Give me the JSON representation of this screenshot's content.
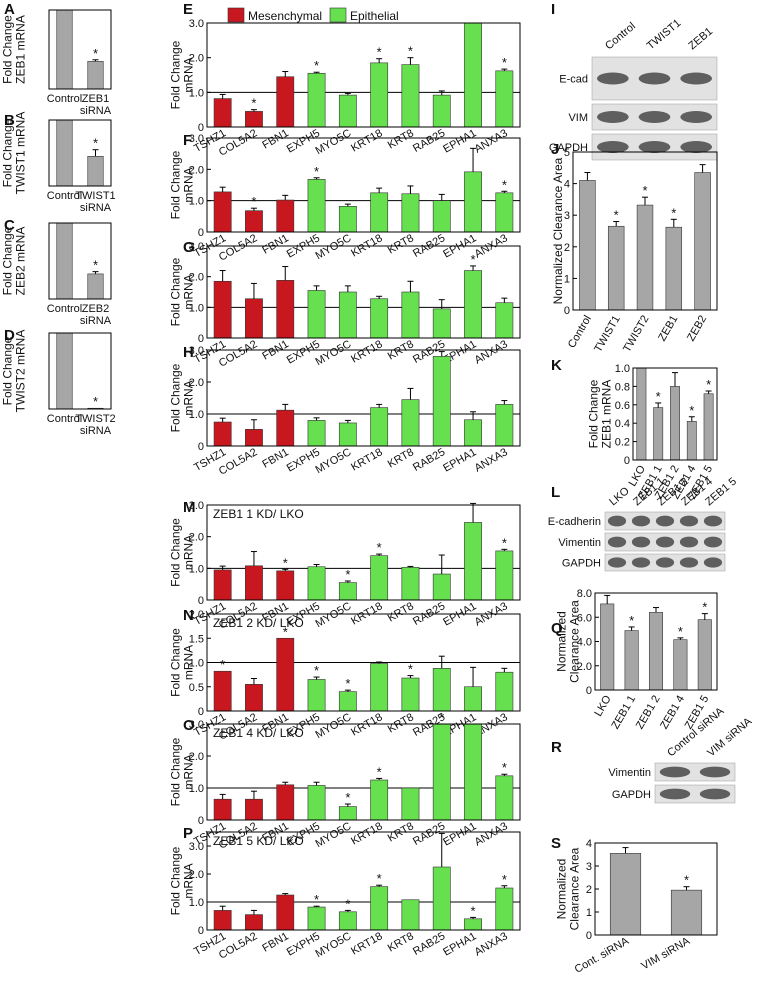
{
  "chart_data": [
    {
      "type": "bar",
      "panel": "A",
      "ylabel": "Fold Change\nZEB1 mRNA",
      "categories": [
        "Control",
        "ZEB1\nsiRNA"
      ],
      "series": [
        {
          "color": "#a6a6a6",
          "values": [
            1,
            0.35
          ],
          "errors": [
            null,
            0.02
          ]
        }
      ],
      "significance": [
        null,
        "*"
      ],
      "ylim": [
        0,
        1
      ]
    },
    {
      "type": "bar",
      "panel": "B",
      "ylabel": "Fold Change\nTWIST1 mRNA",
      "categories": [
        "Control",
        "TWIST1\nsiRNA"
      ],
      "series": [
        {
          "color": "#a6a6a6",
          "values": [
            1,
            0.45
          ],
          "errors": [
            null,
            0.1
          ]
        }
      ],
      "significance": [
        null,
        "*"
      ],
      "ylim": [
        0,
        1
      ]
    },
    {
      "type": "bar",
      "panel": "C",
      "ylabel": "Fold Change\nZEB2 mRNA",
      "categories": [
        "Control",
        "ZEB2\nsiRNA"
      ],
      "series": [
        {
          "color": "#a6a6a6",
          "values": [
            1,
            0.33
          ],
          "errors": [
            null,
            0.03
          ]
        }
      ],
      "significance": [
        null,
        "*"
      ],
      "ylim": [
        0,
        1
      ]
    },
    {
      "type": "bar",
      "panel": "D",
      "ylabel": "Fold Change\nTWIST2 mRNA",
      "categories": [
        "Control",
        "TWIST2\nsiRNA"
      ],
      "series": [
        {
          "color": "#a6a6a6",
          "values": [
            1,
            0.01
          ],
          "errors": [
            null,
            null
          ]
        }
      ],
      "significance": [
        null,
        "*"
      ],
      "ylim": [
        0,
        1
      ]
    },
    {
      "type": "bar",
      "panel": "E",
      "ylabel": "Fold Change\nmRNA",
      "categories": [
        "TSHZ1",
        "COL5A2",
        "FBN1",
        "EXPH5",
        "MYO5C",
        "KRT18",
        "KRT8",
        "RAB25",
        "EPHA1",
        "ANXA3"
      ],
      "series": [
        {
          "name": "Mesenchymal",
          "color": "#c8171e",
          "values": [
            0.82,
            0.45,
            1.45,
            null,
            null,
            null,
            null,
            null,
            null,
            null
          ],
          "errors": [
            0.12,
            0.05,
            0.15,
            null,
            null,
            null,
            null,
            null,
            null,
            null
          ]
        },
        {
          "name": "Epithelial",
          "color": "#66e04e",
          "values": [
            null,
            null,
            null,
            1.55,
            0.92,
            1.85,
            1.8,
            0.92,
            3.0,
            1.62
          ],
          "errors": [
            null,
            null,
            null,
            0.03,
            0.05,
            0.12,
            0.2,
            0.12,
            null,
            0.05
          ]
        }
      ],
      "significance": [
        null,
        "*",
        null,
        "*",
        null,
        "*",
        "*",
        null,
        null,
        "*"
      ],
      "reference_line": 1,
      "ylim": [
        0,
        3
      ],
      "yticks": [
        0,
        {
          "value": 1,
          "label": "1.0"
        },
        {
          "value": 2,
          "label": "2.0"
        },
        {
          "value": 3,
          "label": "3.0"
        }
      ]
    },
    {
      "type": "bar",
      "panel": "F",
      "ylabel": "Fold Change\nmRNA",
      "categories": [
        "TSHZ1",
        "COL5A2",
        "FBN1",
        "EXPH5",
        "MYO5C",
        "KRT18",
        "KRT8",
        "RAB25",
        "EPHA1",
        "ANXA3"
      ],
      "series": [
        {
          "color": "#c8171e",
          "values": [
            1.28,
            0.68,
            1.02,
            null,
            null,
            null,
            null,
            null,
            null,
            null
          ],
          "errors": [
            0.15,
            0.08,
            0.15,
            null,
            null,
            null,
            null,
            null,
            null,
            null
          ]
        },
        {
          "color": "#66e04e",
          "values": [
            null,
            null,
            null,
            1.68,
            0.82,
            1.25,
            1.22,
            1.0,
            1.92,
            1.25
          ],
          "errors": [
            null,
            null,
            null,
            0.05,
            0.07,
            0.15,
            0.25,
            0.2,
            0.75,
            0.05
          ]
        }
      ],
      "significance": [
        null,
        "*",
        null,
        "*",
        null,
        null,
        null,
        null,
        null,
        "*"
      ],
      "reference_line": 1,
      "ylim": [
        0,
        3
      ],
      "yticks": [
        0,
        {
          "value": 1,
          "label": "1.0"
        },
        {
          "value": 2,
          "label": "2.0"
        },
        {
          "value": 3,
          "label": "3.0"
        }
      ]
    },
    {
      "type": "bar",
      "panel": "G",
      "ylabel": "Fold Change\nmRNA",
      "categories": [
        "TSHZ1",
        "COL5A2",
        "FBN1",
        "EXPH5",
        "MYO5C",
        "KRT18",
        "KRT8",
        "RAB25",
        "EPHA1",
        "ANXA3"
      ],
      "series": [
        {
          "color": "#c8171e",
          "values": [
            1.85,
            1.28,
            1.88,
            null,
            null,
            null,
            null,
            null,
            null,
            null
          ],
          "errors": [
            0.35,
            0.5,
            0.45,
            null,
            null,
            null,
            null,
            null,
            null,
            null
          ]
        },
        {
          "color": "#66e04e",
          "values": [
            null,
            null,
            null,
            1.55,
            1.5,
            1.28,
            1.5,
            0.95,
            2.2,
            1.15
          ],
          "errors": [
            null,
            null,
            null,
            0.15,
            0.2,
            0.08,
            0.35,
            0.3,
            0.15,
            0.15
          ]
        }
      ],
      "significance": [
        null,
        null,
        null,
        null,
        null,
        null,
        null,
        null,
        "*",
        null
      ],
      "reference_line": 1,
      "ylim": [
        0,
        3
      ],
      "yticks": [
        0,
        {
          "value": 1,
          "label": "1.0"
        },
        {
          "value": 2,
          "label": "2.0"
        },
        {
          "value": 3,
          "label": "3.0"
        }
      ]
    },
    {
      "type": "bar",
      "panel": "H",
      "ylabel": "Fold Change\nmRNA",
      "categories": [
        "TSHZ1",
        "COL5A2",
        "FBN1",
        "EXPH5",
        "MYO5C",
        "KRT18",
        "KRT8",
        "RAB25",
        "EPHA1",
        "ANXA3"
      ],
      "series": [
        {
          "color": "#c8171e",
          "values": [
            0.75,
            0.52,
            1.12,
            null,
            null,
            null,
            null,
            null,
            null,
            null
          ],
          "errors": [
            0.12,
            0.3,
            0.18,
            null,
            null,
            null,
            null,
            null,
            null,
            null
          ]
        },
        {
          "color": "#66e04e",
          "values": [
            null,
            null,
            null,
            0.8,
            0.72,
            1.2,
            1.45,
            2.8,
            0.82,
            1.3
          ],
          "errors": [
            null,
            null,
            null,
            0.08,
            0.08,
            0.1,
            0.35,
            0.15,
            0.25,
            0.12
          ]
        }
      ],
      "reference_line": 1,
      "ylim": [
        0,
        3
      ],
      "yticks": [
        0,
        {
          "value": 1,
          "label": "1.0"
        },
        {
          "value": 2,
          "label": "2.0"
        },
        {
          "value": 3,
          "label": "3.0"
        }
      ]
    },
    {
      "type": "blot",
      "panel": "I",
      "lanes": [
        "Control",
        "TWIST1",
        "ZEB1"
      ],
      "rows": [
        "E-cad",
        "VIM",
        "GAPDH"
      ]
    },
    {
      "type": "bar",
      "panel": "J",
      "ylabel": "Normalized Clearance Area",
      "categories": [
        "Control",
        "TWIST1",
        "TWIST2",
        "ZEB1",
        "ZEB2"
      ],
      "series": [
        {
          "color": "#a6a6a6",
          "values": [
            4.1,
            2.65,
            3.32,
            2.62,
            4.35
          ],
          "errors": [
            0.25,
            0.15,
            0.25,
            0.25,
            0.25
          ]
        }
      ],
      "significance": [
        null,
        "*",
        "*",
        "*",
        null
      ],
      "ylim": [
        0,
        5
      ],
      "yticks": [
        0,
        1,
        2,
        3,
        4,
        5
      ]
    },
    {
      "type": "bar",
      "panel": "K",
      "ylabel": "Fold Change\nZEB1 mRNA",
      "categories": [
        "LKO",
        "ZEB1 1",
        "ZEB1 2",
        "ZEB1 4",
        "ZEB1 5"
      ],
      "series": [
        {
          "color": "#a6a6a6",
          "values": [
            1.0,
            0.57,
            0.8,
            0.42,
            0.72
          ],
          "errors": [
            null,
            0.05,
            0.15,
            0.05,
            0.03
          ]
        }
      ],
      "significance": [
        null,
        "*",
        null,
        "*",
        "*"
      ],
      "ylim": [
        0,
        1
      ],
      "yticks": [
        0,
        0.2,
        0.4,
        0.6,
        0.8,
        {
          "value": 1,
          "label": "1.0"
        }
      ]
    },
    {
      "type": "blot",
      "panel": "L",
      "lanes": [
        "LKO",
        "ZEB1 1",
        "ZEB1 2",
        "ZEB1 4",
        "ZEB1 5"
      ],
      "rows": [
        "E-cadherin",
        "Vimentin",
        "GAPDH"
      ]
    },
    {
      "type": "bar",
      "panel": "M",
      "subtitle": "ZEB1 1 KD/ LKO",
      "ylabel": "Fold Change\nmRNA",
      "categories": [
        "TSHZ1",
        "COL5A2",
        "FBN1",
        "EXPH5",
        "MYO5C",
        "KRT18",
        "KRT8",
        "RAB25",
        "EPHA1",
        "ANXA3"
      ],
      "series": [
        {
          "color": "#c8171e",
          "values": [
            0.95,
            1.08,
            0.92,
            null,
            null,
            null,
            null,
            null,
            null,
            null
          ],
          "errors": [
            0.12,
            0.45,
            0.05,
            null,
            null,
            null,
            null,
            null,
            null,
            null
          ]
        },
        {
          "color": "#66e04e",
          "values": [
            null,
            null,
            null,
            1.05,
            0.55,
            1.4,
            1.03,
            0.82,
            2.45,
            1.55
          ],
          "errors": [
            null,
            null,
            null,
            0.07,
            0.05,
            0.05,
            0.03,
            0.6,
            0.6,
            0.05
          ]
        }
      ],
      "significance": [
        null,
        null,
        "*",
        null,
        "*",
        "*",
        null,
        null,
        null,
        "*"
      ],
      "reference_line": 1,
      "ylim": [
        0,
        3
      ],
      "yticks": [
        0,
        {
          "value": 1,
          "label": "1.0"
        },
        {
          "value": 2,
          "label": "2.0"
        },
        {
          "value": 3,
          "label": "3.0"
        }
      ]
    },
    {
      "type": "bar",
      "panel": "N",
      "subtitle": "ZEB1 2 KD/ LKO",
      "ylabel": "Fold Change\nmRNA",
      "categories": [
        "TSHZ1",
        "COL5A2",
        "FBN1",
        "EXPH5",
        "MYO5C",
        "KRT18",
        "KRT8",
        "RAB25",
        "EPHA1",
        "ANXA3"
      ],
      "series": [
        {
          "color": "#c8171e",
          "values": [
            0.82,
            0.55,
            1.5,
            null,
            null,
            null,
            null,
            null,
            null,
            null
          ],
          "errors": [
            null,
            0.12,
            null,
            null,
            null,
            null,
            null,
            null,
            null,
            null
          ]
        },
        {
          "color": "#66e04e",
          "values": [
            null,
            null,
            null,
            0.65,
            0.4,
            0.98,
            0.68,
            0.88,
            0.5,
            0.8
          ],
          "errors": [
            null,
            null,
            null,
            0.05,
            0.03,
            0.03,
            0.05,
            0.25,
            0.4,
            0.08
          ]
        }
      ],
      "significance": [
        "*",
        null,
        "*",
        "*",
        "*",
        null,
        "*",
        null,
        null,
        null
      ],
      "reference_line": 1,
      "ylim": [
        0,
        2
      ],
      "yticks": [
        0,
        0.5,
        {
          "value": 1,
          "label": "1.0"
        },
        1.5,
        {
          "value": 2,
          "label": "2.0"
        }
      ]
    },
    {
      "type": "bar",
      "panel": "O",
      "subtitle": "ZEB1 4 KD/ LKO",
      "ylabel": "Fold Change\nmRNA",
      "categories": [
        "TSHZ1",
        "COL5A2",
        "FBN1",
        "EXPH5",
        "MYO5C",
        "KRT18",
        "KRT8",
        "RAB25",
        "EPHA1",
        "ANXA3"
      ],
      "series": [
        {
          "color": "#c8171e",
          "values": [
            0.65,
            0.65,
            1.1,
            null,
            null,
            null,
            null,
            null,
            null,
            null
          ],
          "errors": [
            0.15,
            0.25,
            0.08,
            null,
            null,
            null,
            null,
            null,
            null,
            null
          ]
        },
        {
          "color": "#66e04e",
          "values": [
            null,
            null,
            null,
            1.08,
            0.42,
            1.25,
            1.0,
            3.0,
            3.0,
            1.38
          ],
          "errors": [
            null,
            null,
            null,
            0.1,
            0.08,
            0.05,
            null,
            null,
            null,
            0.05
          ]
        }
      ],
      "significance": [
        null,
        null,
        null,
        null,
        "*",
        "*",
        null,
        "*",
        null,
        "*"
      ],
      "reference_line": 1,
      "ylim": [
        0,
        3
      ],
      "yticks": [
        0,
        {
          "value": 1,
          "label": "1.0"
        },
        {
          "value": 2,
          "label": "2.0"
        },
        {
          "value": 3,
          "label": "3.0"
        }
      ]
    },
    {
      "type": "bar",
      "panel": "P",
      "subtitle": "ZEB1 5 KD/ LKO",
      "ylabel": "Fold Change\nmRNA",
      "categories": [
        "TSHZ1",
        "COL5A2",
        "FBN1",
        "EXPH5",
        "MYO5C",
        "KRT18",
        "KRT8",
        "RAB25",
        "EPHA1",
        "ANXA3"
      ],
      "series": [
        {
          "color": "#c8171e",
          "values": [
            0.7,
            0.55,
            1.25,
            null,
            null,
            null,
            null,
            null,
            null,
            null
          ],
          "errors": [
            0.15,
            0.15,
            0.05,
            null,
            null,
            null,
            null,
            null,
            null,
            null
          ]
        },
        {
          "color": "#66e04e",
          "values": [
            null,
            null,
            null,
            0.82,
            0.65,
            1.55,
            1.08,
            2.25,
            0.4,
            1.5
          ],
          "errors": [
            null,
            null,
            null,
            0.03,
            0.05,
            0.05,
            null,
            1.2,
            0.05,
            0.08
          ]
        }
      ],
      "significance": [
        null,
        null,
        null,
        "*",
        "*",
        "*",
        null,
        null,
        "*",
        "*"
      ],
      "reference_line": 1,
      "ylim": [
        0,
        3.5
      ],
      "yticks": [
        0,
        {
          "value": 1,
          "label": "1.0"
        },
        {
          "value": 2,
          "label": "2.0"
        },
        {
          "value": 3,
          "label": "3.0"
        }
      ]
    },
    {
      "type": "bar",
      "panel": "Q",
      "ylabel": "Normalized\nClearance Area",
      "categories": [
        "LKO",
        "ZEB1 1",
        "ZEB1 2",
        "ZEB1 4",
        "ZEB1 5"
      ],
      "series": [
        {
          "color": "#a6a6a6",
          "values": [
            7.1,
            4.9,
            6.4,
            4.15,
            5.8
          ],
          "errors": [
            0.7,
            0.3,
            0.4,
            0.15,
            0.5
          ]
        }
      ],
      "significance": [
        null,
        "*",
        null,
        "*",
        "*"
      ],
      "ylim": [
        0,
        8
      ],
      "yticks": [
        0,
        {
          "value": 2,
          "label": "2.0"
        },
        {
          "value": 4,
          "label": "4.0"
        },
        {
          "value": 6,
          "label": "6.0"
        },
        {
          "value": 8,
          "label": "8.0"
        }
      ]
    },
    {
      "type": "blot",
      "panel": "R",
      "lanes": [
        "Control siRNA",
        "VIM siRNA"
      ],
      "rows": [
        "Vimentin",
        "GAPDH"
      ]
    },
    {
      "type": "bar",
      "panel": "S",
      "ylabel": "Normalized\nClearance Area",
      "categories": [
        "Cont. siRNA",
        "VIM siRNA"
      ],
      "series": [
        {
          "color": "#a6a6a6",
          "values": [
            3.55,
            1.95
          ],
          "errors": [
            0.25,
            0.15
          ]
        }
      ],
      "significance": [
        null,
        "*"
      ],
      "ylim": [
        0,
        4
      ],
      "yticks": [
        0,
        1,
        2,
        3,
        4
      ]
    }
  ]
}
